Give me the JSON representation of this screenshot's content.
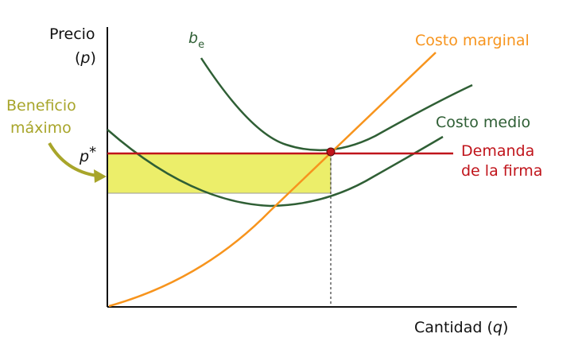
{
  "axes": {
    "y_label": "Precio",
    "y_symbol_open": "(",
    "y_symbol": "p",
    "y_symbol_close": ")",
    "x_label": "Cantidad (",
    "x_symbol": "q",
    "x_label_close": ")"
  },
  "curves": {
    "be_letter": "b",
    "be_subscript": "e",
    "marginal_cost": "Costo marginal",
    "average_cost": "Costo medio",
    "demand_line1": "Demanda",
    "demand_line2": "de la firma"
  },
  "annotations": {
    "profit_line1": "Beneficio",
    "profit_line2": "máximo",
    "price_star_letter": "p",
    "price_star_mark": "*"
  },
  "colors": {
    "axis": "#111111",
    "marginal_cost": "#f7941d",
    "average_cost": "#2f5f35",
    "be_curve": "#2f5f35",
    "demand": "#c0141b",
    "profit_fill": "#ecee6a",
    "profit_label": "#a8a52a",
    "equilibrium_point": "#c0141b"
  }
}
